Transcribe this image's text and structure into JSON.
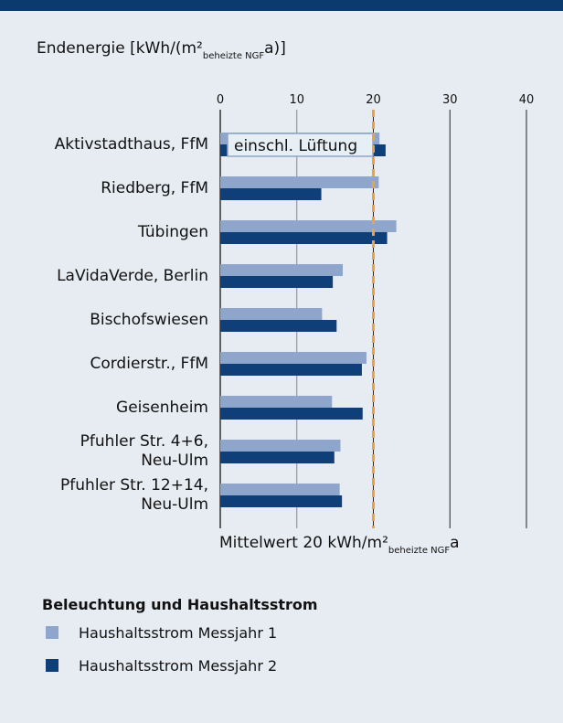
{
  "chart_data": {
    "type": "bar",
    "orientation": "horizontal",
    "axis_label": {
      "main": "Endenergie [kWh/(m²",
      "sub": "beheizte NGF",
      "end": "a)]"
    },
    "categories": [
      "Aktivstadthaus, FfM",
      "Riedberg, FfM",
      "Tübingen",
      "LaVidaVerde, Berlin",
      "Bischofswiesen",
      "Cordierstr., FfM",
      "Geisenheim",
      "Pfuhler Str. 4+6,\nNeu-Ulm",
      "Pfuhler Str. 12+14,\nNeu-Ulm"
    ],
    "series": [
      {
        "name": "Haushaltsstrom Messjahr 1",
        "color": "#8ea6cc",
        "values": [
          20.8,
          20.7,
          23.0,
          16.0,
          13.3,
          19.1,
          14.6,
          15.7,
          15.6
        ]
      },
      {
        "name": "Haushaltsstrom Messjahr 2",
        "color": "#0e3f78",
        "values": [
          21.6,
          13.2,
          21.8,
          14.7,
          15.2,
          18.5,
          18.6,
          14.9,
          15.9
        ]
      }
    ],
    "bar_annotation": "einschl. Lüftung",
    "reference_line": {
      "value": 20,
      "color": "#f0a040",
      "label": {
        "main": "Mittelwert 20 kWh/m²",
        "sub": "beheizte NGF",
        "end": "a"
      }
    },
    "legend_title": "Beleuchtung und Haushaltsstrom",
    "xlim": [
      0,
      40
    ],
    "xticks": [
      0,
      10,
      20,
      30,
      40
    ],
    "grid": true
  }
}
